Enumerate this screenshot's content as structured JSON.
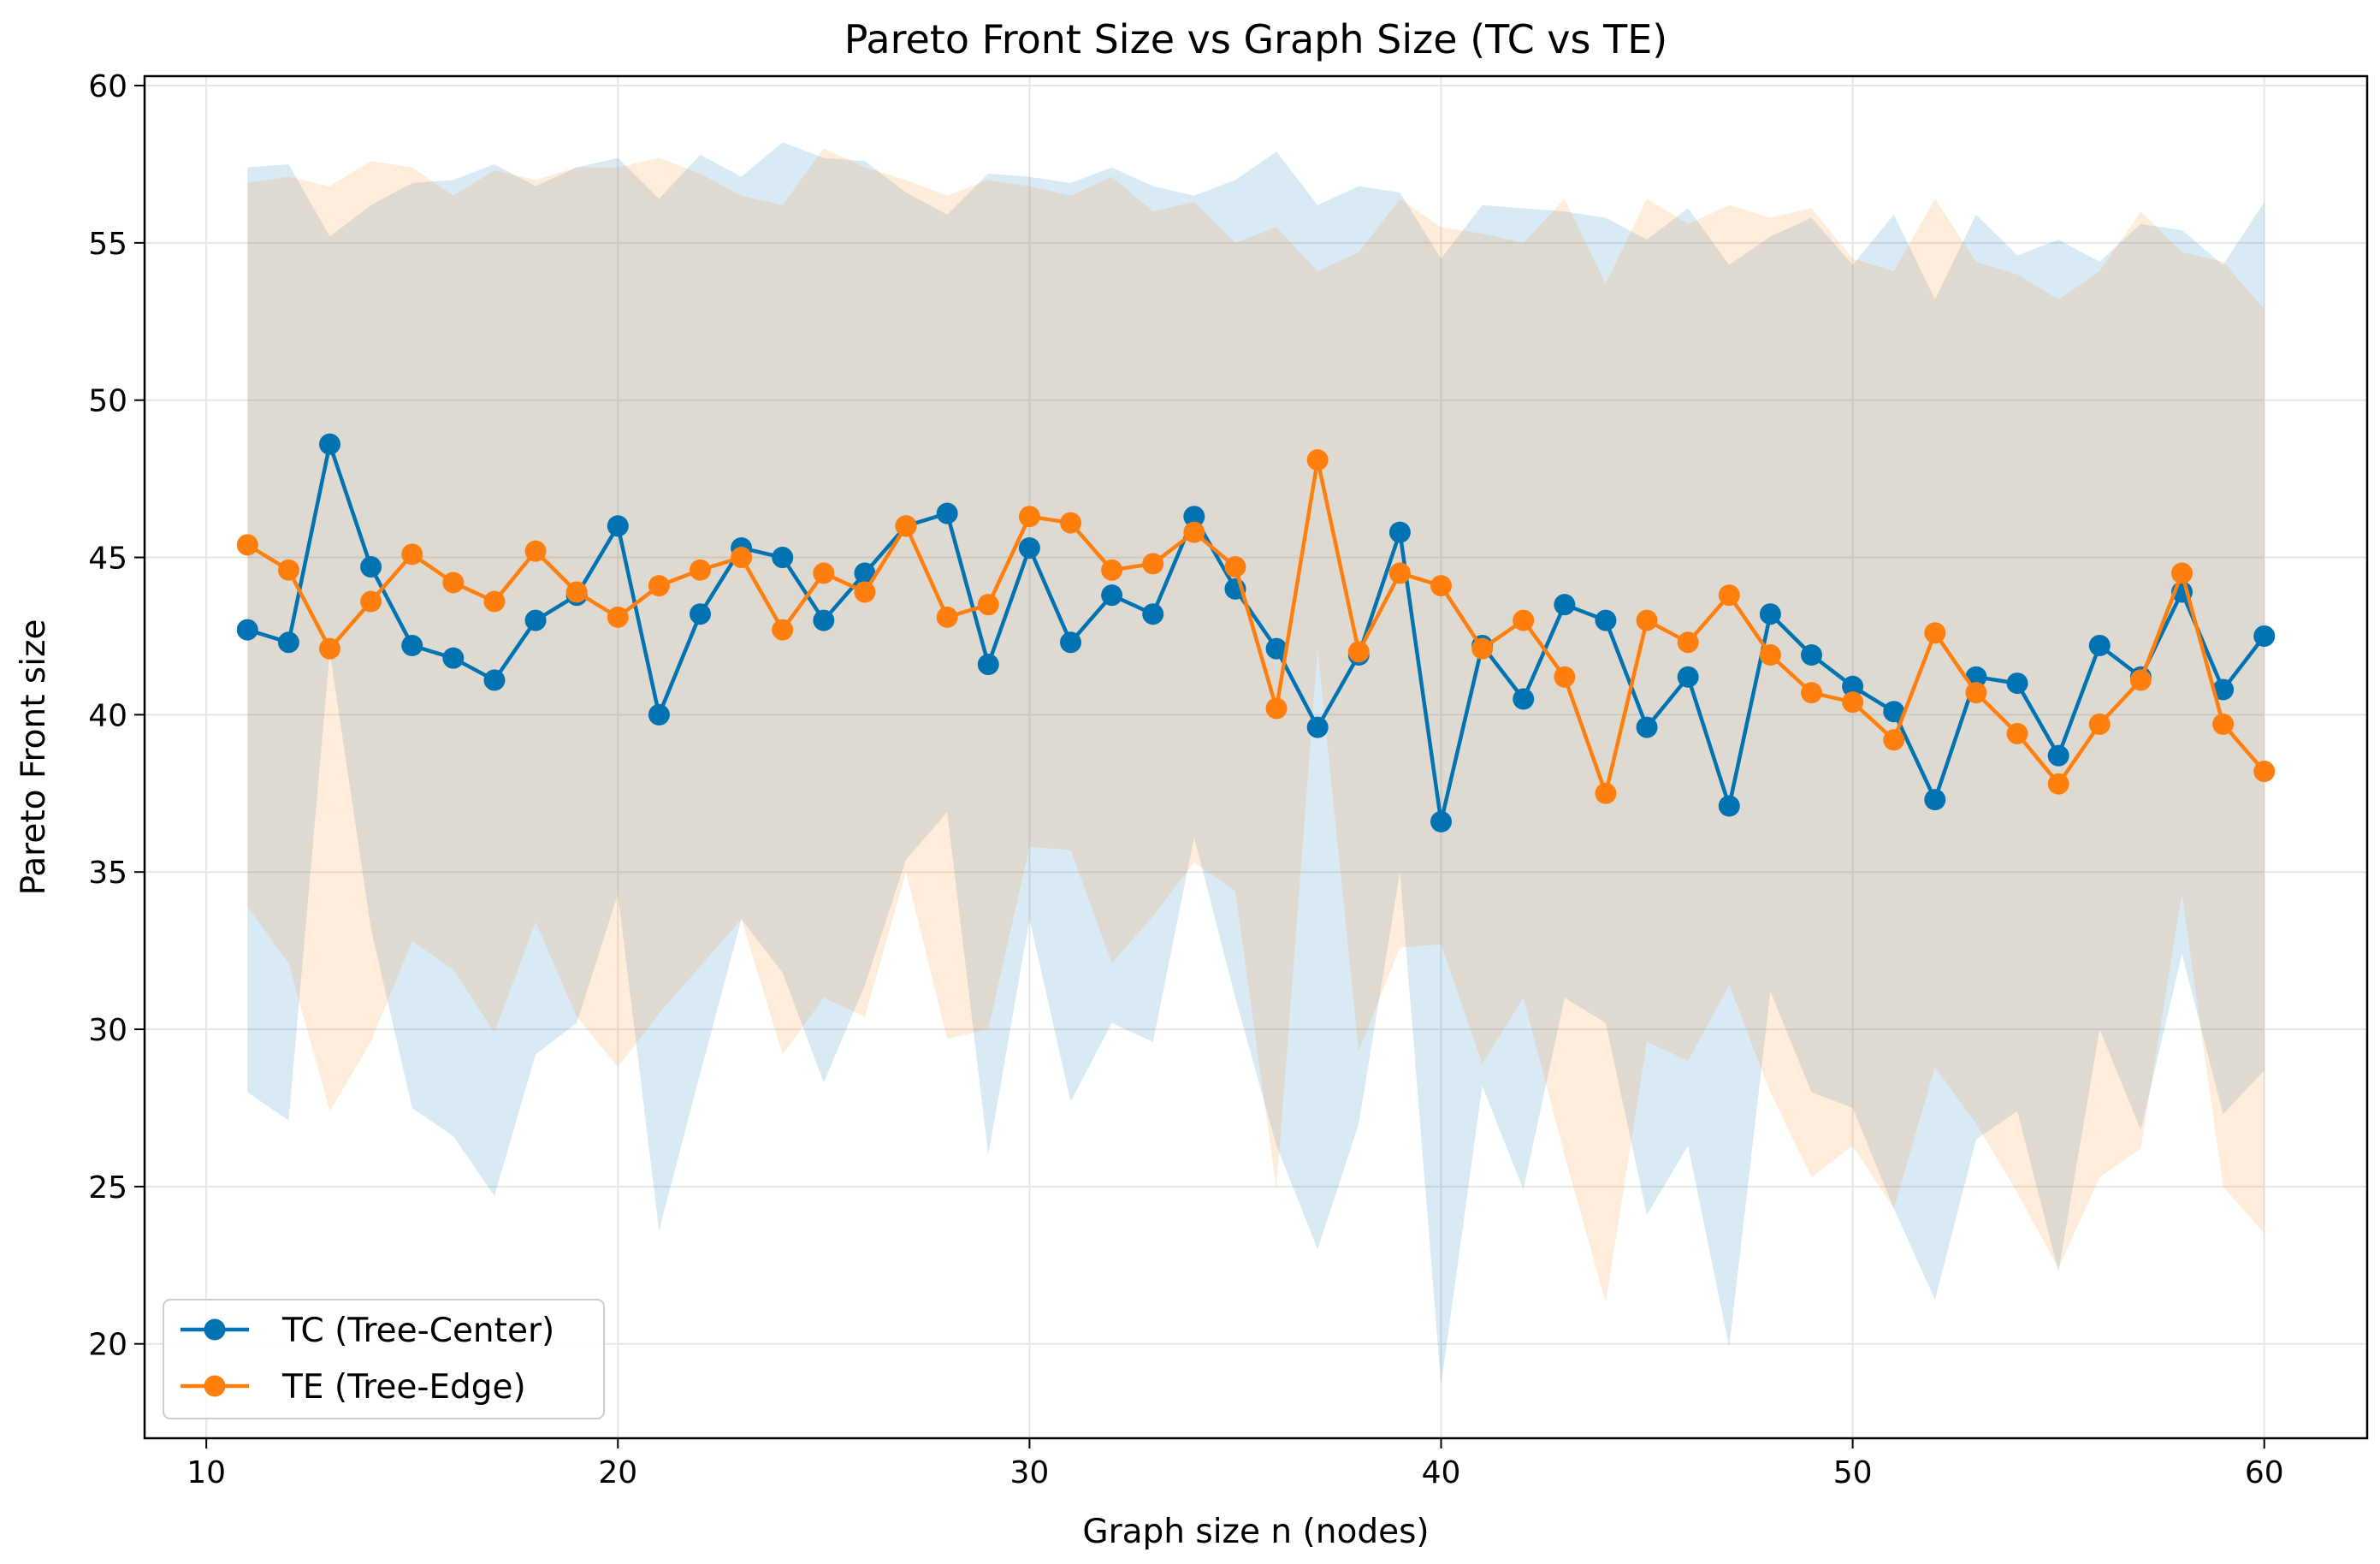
{
  "chart_data": {
    "type": "line",
    "title": "Pareto Front Size vs Graph Size (TC vs TE)",
    "xlabel": "Graph size n (nodes)",
    "ylabel": "Pareto Front size",
    "xlim": [
      8.5,
      62.5
    ],
    "ylim": [
      17,
      60.3
    ],
    "xticks": [
      10,
      20,
      30,
      40,
      50,
      60
    ],
    "yticks": [
      20,
      25,
      30,
      35,
      40,
      45,
      50,
      55,
      60
    ],
    "grid": true,
    "legend_position": "lower-left",
    "x": [
      11,
      12,
      13,
      14,
      15,
      16,
      17,
      18,
      19,
      20,
      21,
      22,
      23,
      24,
      25,
      26,
      27,
      28,
      29,
      30,
      31,
      32,
      33,
      34,
      35,
      36,
      37,
      38,
      39,
      40,
      41,
      42,
      43,
      44,
      45,
      46,
      47,
      48,
      49,
      50,
      51,
      52,
      53,
      54,
      55,
      56,
      57,
      58,
      59,
      60
    ],
    "series": [
      {
        "name": "TC (Tree-Center)",
        "color": "#0173b2",
        "band_color": "#a6d0ea",
        "values": [
          42.7,
          42.3,
          48.6,
          44.7,
          42.2,
          41.8,
          41.1,
          43.0,
          43.8,
          46.0,
          40.0,
          43.2,
          45.3,
          45.0,
          43.0,
          44.5,
          46.0,
          46.4,
          41.6,
          45.3,
          42.3,
          43.8,
          43.2,
          46.3,
          44.0,
          42.1,
          39.6,
          41.9,
          45.8,
          36.6,
          42.2,
          40.5,
          43.5,
          43.0,
          39.6,
          41.2,
          37.1,
          43.2,
          41.9,
          40.9,
          40.1,
          37.3,
          41.2,
          41.0,
          38.7,
          42.2,
          41.2,
          43.9,
          40.8,
          42.5
        ],
        "std": [
          14.7,
          15.2,
          6.6,
          11.5,
          14.7,
          15.2,
          16.4,
          13.8,
          13.6,
          11.7,
          16.4,
          14.6,
          11.8,
          13.2,
          14.7,
          13.1,
          10.6,
          9.5,
          15.6,
          11.8,
          14.6,
          13.6,
          13.6,
          10.2,
          13.0,
          15.8,
          16.6,
          14.9,
          10.8,
          17.9,
          14.0,
          15.6,
          12.5,
          12.8,
          15.5,
          14.9,
          17.2,
          12.0,
          13.9,
          13.4,
          15.8,
          15.9,
          14.7,
          13.6,
          16.4,
          12.2,
          14.4,
          11.5,
          13.5,
          13.8
        ]
      },
      {
        "name": "TE (Tree-Edge)",
        "color": "#ff7f0e",
        "band_color": "#ffd5b0",
        "values": [
          45.4,
          44.6,
          42.1,
          43.6,
          45.1,
          44.2,
          43.6,
          45.2,
          43.9,
          43.1,
          44.1,
          44.6,
          45.0,
          42.7,
          44.5,
          43.9,
          46.0,
          43.1,
          43.5,
          46.3,
          46.1,
          44.6,
          44.8,
          45.8,
          44.7,
          40.2,
          48.1,
          42.0,
          44.5,
          44.1,
          42.1,
          43.0,
          41.2,
          37.5,
          43.0,
          42.3,
          43.8,
          41.9,
          40.7,
          40.4,
          39.2,
          42.6,
          40.7,
          39.4,
          37.8,
          39.7,
          41.1,
          44.5,
          39.7,
          38.2
        ],
        "std": [
          11.5,
          12.5,
          14.7,
          14.0,
          12.3,
          12.3,
          13.7,
          11.8,
          13.5,
          14.3,
          13.6,
          12.6,
          11.5,
          13.5,
          13.5,
          13.5,
          11.0,
          13.4,
          13.5,
          10.5,
          10.4,
          12.5,
          11.2,
          10.5,
          10.3,
          15.3,
          6.0,
          12.7,
          11.9,
          11.4,
          13.2,
          12.0,
          15.2,
          16.2,
          13.4,
          13.3,
          12.4,
          13.9,
          15.4,
          14.1,
          14.9,
          13.8,
          13.7,
          14.6,
          15.4,
          14.4,
          14.9,
          10.2,
          14.7,
          14.7
        ]
      }
    ]
  }
}
